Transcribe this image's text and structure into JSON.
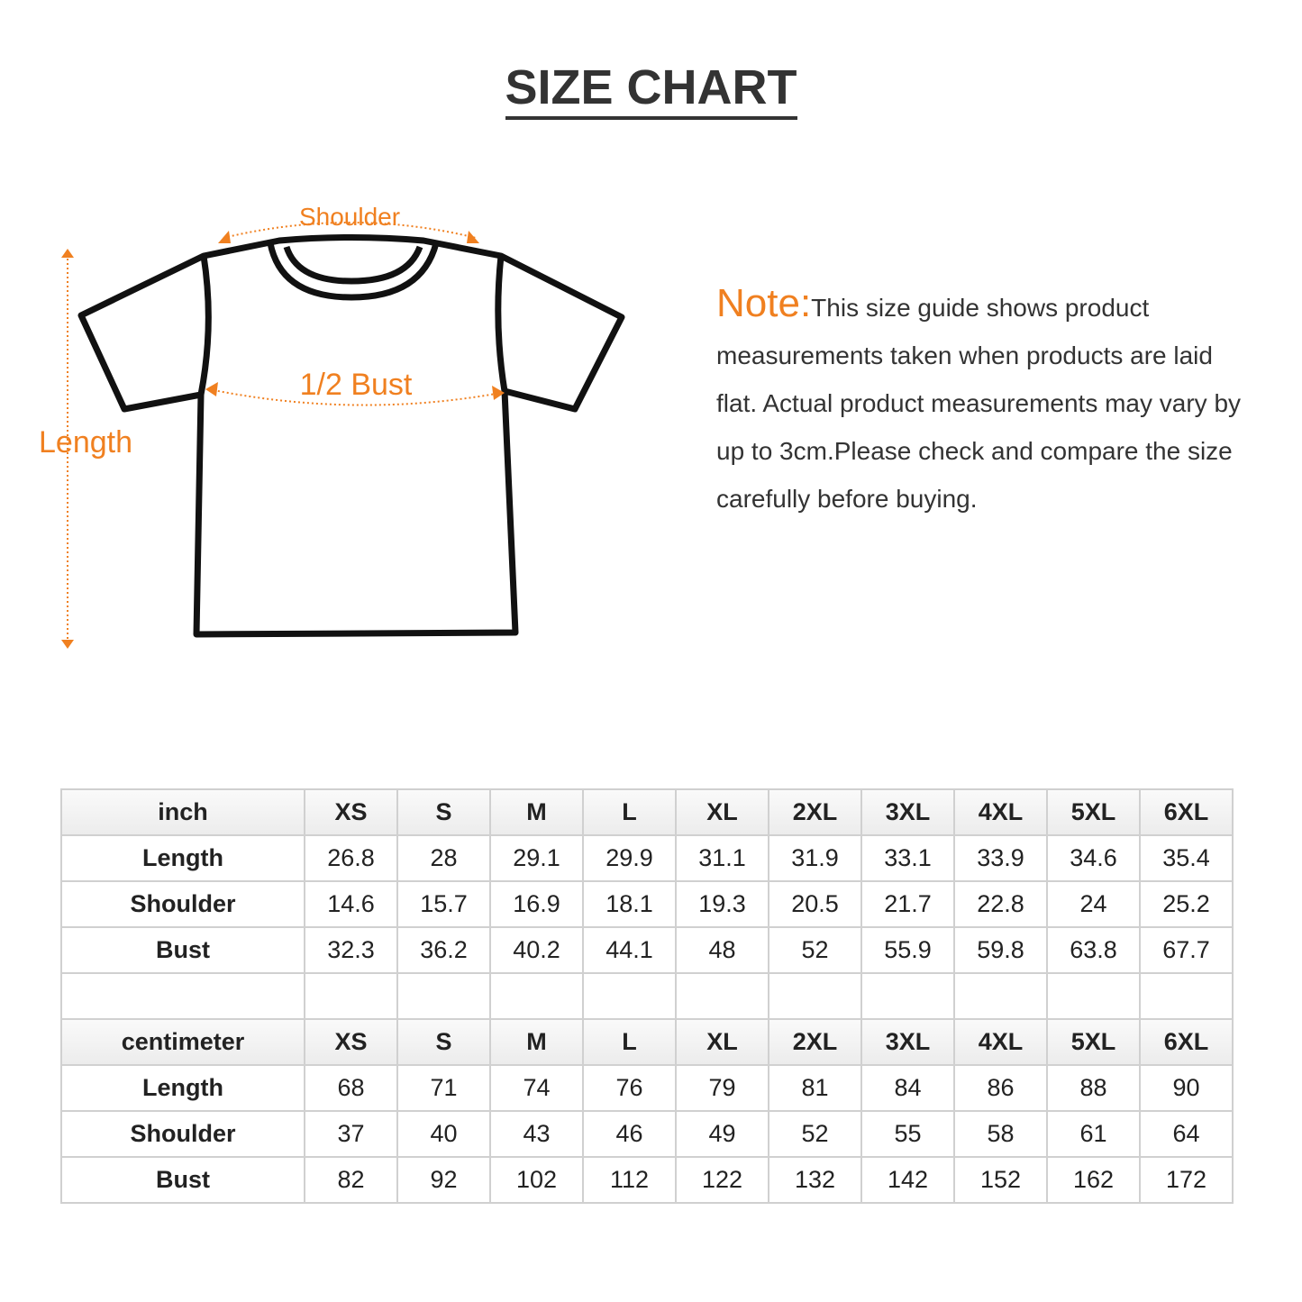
{
  "header": {
    "title": "SIZE CHART"
  },
  "diagram": {
    "shoulder_label": "Shoulder",
    "bust_label": "1/2 Bust",
    "length_label": "Length"
  },
  "note": {
    "label": "Note:",
    "text": "This size guide shows product measurements taken when products are laid flat. Actual product measurements may vary by up to 3cm.Please check and compare the size carefully before buying."
  },
  "table": {
    "sections": [
      {
        "header": [
          "inch",
          "XS",
          "S",
          "M",
          "L",
          "XL",
          "2XL",
          "3XL",
          "4XL",
          "5XL",
          "6XL"
        ],
        "rows": [
          [
            "Length",
            "26.8",
            "28",
            "29.1",
            "29.9",
            "31.1",
            "31.9",
            "33.1",
            "33.9",
            "34.6",
            "35.4"
          ],
          [
            "Shoulder",
            "14.6",
            "15.7",
            "16.9",
            "18.1",
            "19.3",
            "20.5",
            "21.7",
            "22.8",
            "24",
            "25.2"
          ],
          [
            "Bust",
            "32.3",
            "36.2",
            "40.2",
            "44.1",
            "48",
            "52",
            "55.9",
            "59.8",
            "63.8",
            "67.7"
          ]
        ]
      },
      {
        "header": [
          "centimeter",
          "XS",
          "S",
          "M",
          "L",
          "XL",
          "2XL",
          "3XL",
          "4XL",
          "5XL",
          "6XL"
        ],
        "rows": [
          [
            "Length",
            "68",
            "71",
            "74",
            "76",
            "79",
            "81",
            "84",
            "86",
            "88",
            "90"
          ],
          [
            "Shoulder",
            "37",
            "40",
            "43",
            "46",
            "49",
            "52",
            "55",
            "58",
            "61",
            "64"
          ],
          [
            "Bust",
            "82",
            "92",
            "102",
            "112",
            "122",
            "132",
            "142",
            "152",
            "162",
            "172"
          ]
        ]
      }
    ]
  }
}
